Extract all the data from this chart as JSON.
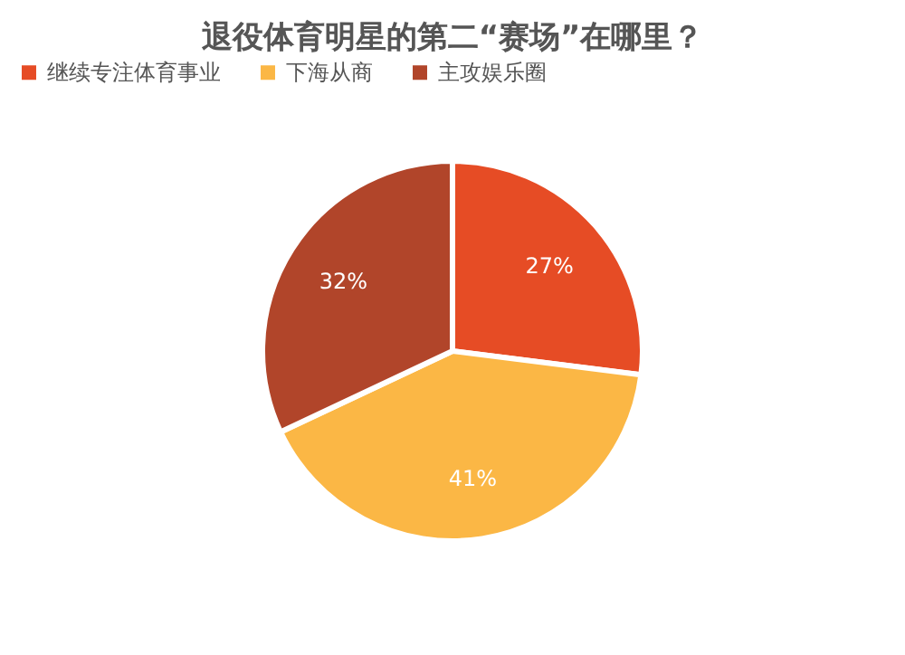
{
  "chart_data": {
    "type": "pie",
    "title": "退役体育明星的第二“赛场”在哪里？",
    "categories": [
      "继续专注体育事业",
      "下海从商",
      "主攻娱乐圈"
    ],
    "values": [
      27,
      41,
      32
    ],
    "colors": [
      "#e64c25",
      "#fbb745",
      "#b1452a"
    ],
    "value_labels": [
      "27%",
      "41%",
      "32%"
    ],
    "legend": "top"
  }
}
